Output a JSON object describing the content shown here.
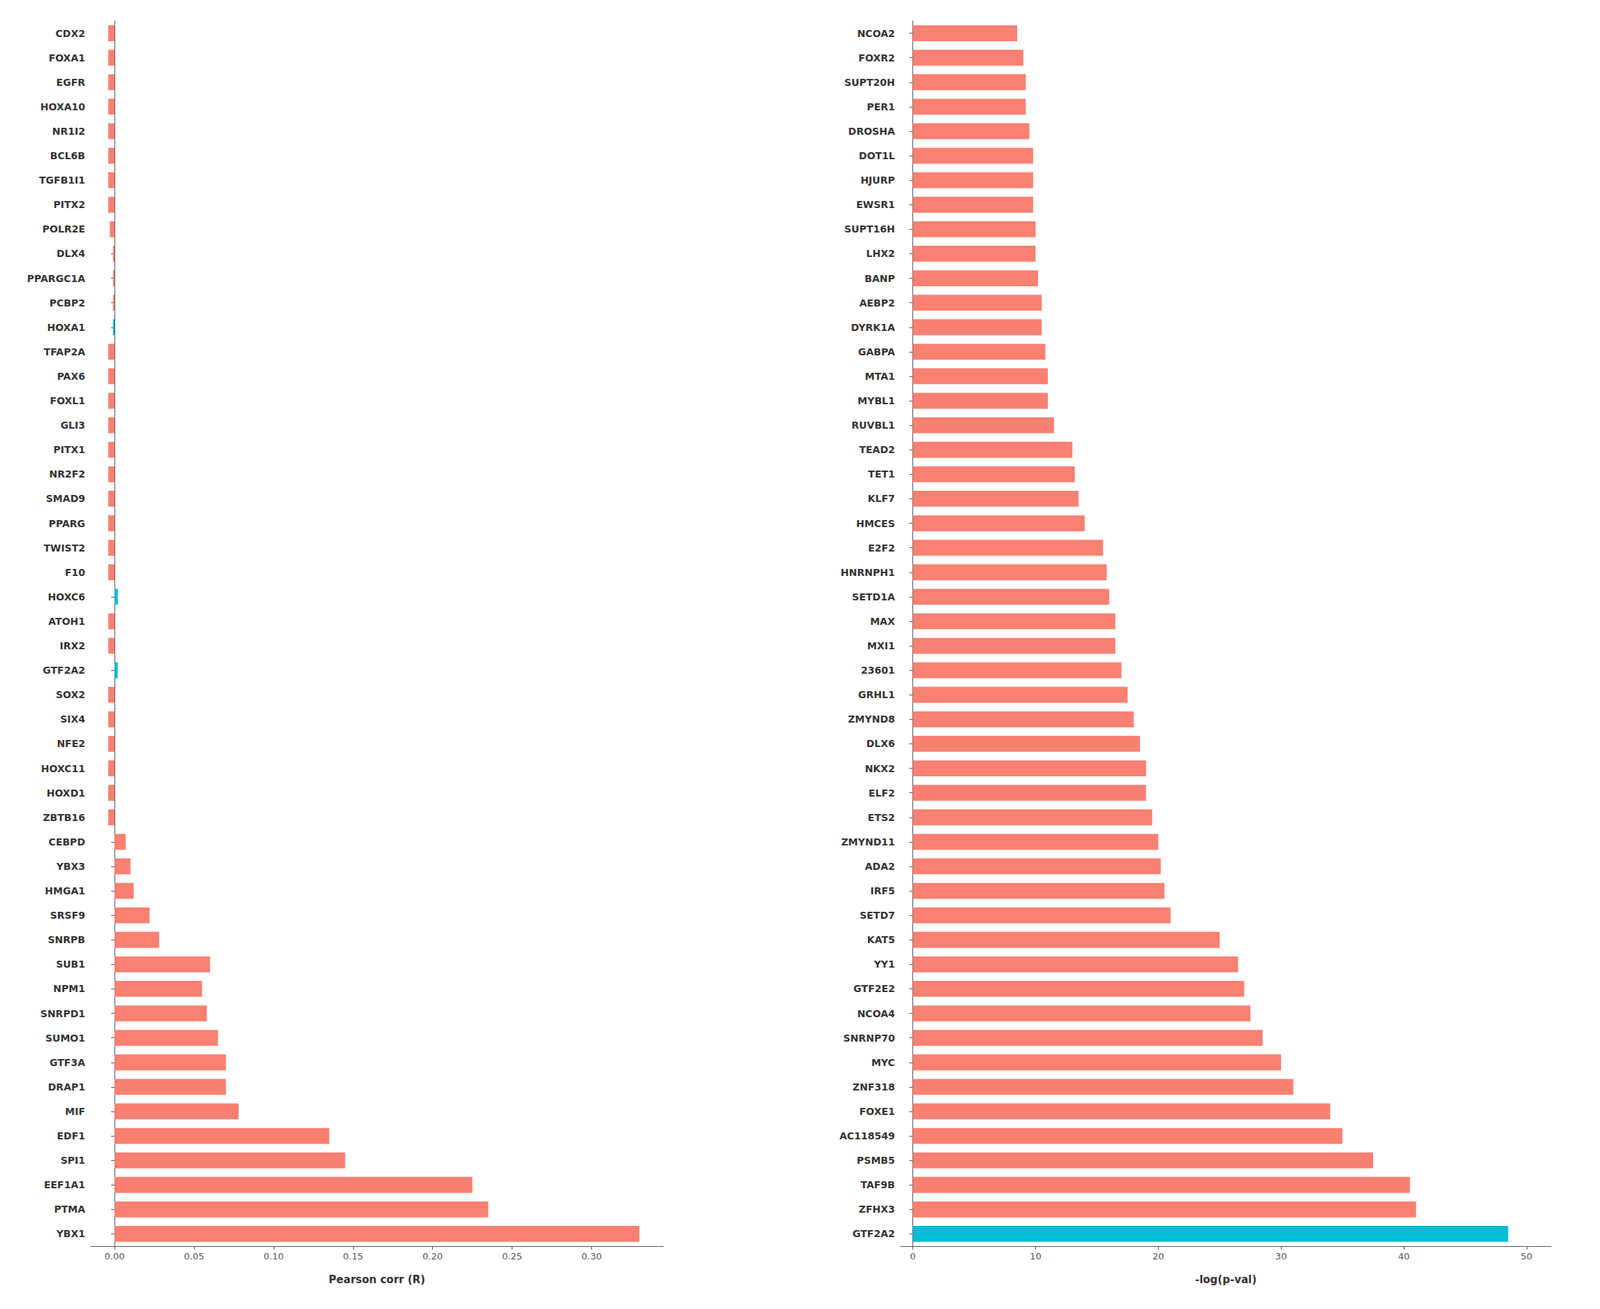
{
  "chart_data": [
    {
      "type": "bar",
      "orientation": "horizontal",
      "xlabel": "Pearson corr (R)",
      "categories": [
        "CDX2",
        "FOXA1",
        "EGFR",
        "HOXA10",
        "NR1I2",
        "BCL6B",
        "TGFB1I1",
        "PITX2",
        "POLR2E",
        "DLX4",
        "PPARGC1A",
        "PCBP2",
        "HOXA1",
        "TFAP2A",
        "PAX6",
        "FOXL1",
        "GLI3",
        "PITX1",
        "NR2F2",
        "SMAD9",
        "PPARG",
        "TWIST2",
        "F10",
        "HOXC6",
        "ATOH1",
        "IRX2",
        "GTF2A2",
        "SOX2",
        "SIX4",
        "NFE2",
        "HOXC11",
        "HOXD1",
        "ZBTB16",
        "CEBPD",
        "YBX3",
        "HMGA1",
        "SRSF9",
        "SNRPB",
        "SUB1",
        "NPM1",
        "SNRPD1",
        "SUMO1",
        "GTF3A",
        "DRAP1",
        "MIF",
        "EDF1",
        "SPI1",
        "EEF1A1",
        "PTMA",
        "YBX1"
      ],
      "values": [
        -0.004,
        -0.004,
        -0.004,
        -0.004,
        -0.004,
        -0.004,
        -0.004,
        -0.004,
        -0.003,
        -0.001,
        -0.001,
        -0.001,
        -0.001,
        -0.004,
        -0.004,
        -0.004,
        -0.004,
        -0.004,
        -0.004,
        -0.004,
        -0.004,
        -0.004,
        -0.004,
        0.002,
        -0.004,
        -0.004,
        0.002,
        -0.004,
        -0.004,
        -0.004,
        -0.004,
        -0.004,
        -0.004,
        0.007,
        0.01,
        0.012,
        0.022,
        0.028,
        0.06,
        0.055,
        0.058,
        0.065,
        0.07,
        0.07,
        0.078,
        0.135,
        0.145,
        0.225,
        0.235,
        0.33
      ],
      "colors": [
        "#FA8072",
        "#FA8072",
        "#FA8072",
        "#FA8072",
        "#FA8072",
        "#FA8072",
        "#FA8072",
        "#FA8072",
        "#FA8072",
        "#FA8072",
        "#FA8072",
        "#FA8072",
        "#00BCD4",
        "#FA8072",
        "#FA8072",
        "#FA8072",
        "#FA8072",
        "#FA8072",
        "#FA8072",
        "#FA8072",
        "#FA8072",
        "#FA8072",
        "#FA8072",
        "#00BCD4",
        "#FA8072",
        "#FA8072",
        "#00BCD4",
        "#FA8072",
        "#FA8072",
        "#FA8072",
        "#FA8072",
        "#FA8072",
        "#FA8072",
        "#FA8072",
        "#FA8072",
        "#FA8072",
        "#FA8072",
        "#FA8072",
        "#FA8072",
        "#FA8072",
        "#FA8072",
        "#FA8072",
        "#FA8072",
        "#FA8072",
        "#FA8072",
        "#FA8072",
        "#FA8072",
        "#FA8072",
        "#FA8072",
        "#FA8072"
      ],
      "xlim": [
        -0.015,
        0.345
      ],
      "xticks": [
        {
          "value": 0,
          "label": "0.00"
        },
        0.05,
        {
          "value": 0.1,
          "label": "0.10"
        },
        0.15,
        {
          "value": 0.2,
          "label": "0.20"
        },
        0.25,
        {
          "value": 0.3,
          "label": "0.30"
        }
      ],
      "grid": false
    },
    {
      "type": "bar",
      "orientation": "horizontal",
      "xlabel": "-log(p-val)",
      "categories": [
        "NCOA2",
        "FOXR2",
        "SUPT20H",
        "PER1",
        "DROSHA",
        "DOT1L",
        "HJURP",
        "EWSR1",
        "SUPT16H",
        "LHX2",
        "BANP",
        "AEBP2",
        "DYRK1A",
        "GABPA",
        "MTA1",
        "MYBL1",
        "RUVBL1",
        "TEAD2",
        "TET1",
        "KLF7",
        "HMCES",
        "E2F2",
        "HNRNPH1",
        "SETD1A",
        "MAX",
        "MXI1",
        "23601",
        "GRHL1",
        "ZMYND8",
        "DLX6",
        "NKX2",
        "ELF2",
        "ETS2",
        "ZMYND11",
        "ADA2",
        "IRF5",
        "SETD7",
        "KAT5",
        "YY1",
        "GTF2E2",
        "NCOA4",
        "SNRNP70",
        "MYC",
        "ZNF318",
        "FOXE1",
        "AC118549",
        "PSMB5",
        "TAF9B",
        "ZFHX3",
        "GTF2A2"
      ],
      "values": [
        8.5,
        9.0,
        9.2,
        9.2,
        9.5,
        9.8,
        9.8,
        9.8,
        10.0,
        10.0,
        10.2,
        10.5,
        10.5,
        10.8,
        11.0,
        11.0,
        11.5,
        13.0,
        13.2,
        13.5,
        14.0,
        15.5,
        15.8,
        16.0,
        16.5,
        16.5,
        17.0,
        17.5,
        18.0,
        18.5,
        19.0,
        19.0,
        19.5,
        20.0,
        20.2,
        20.5,
        21.0,
        25.0,
        26.5,
        27.0,
        27.5,
        28.5,
        30.0,
        31.0,
        34.0,
        35.0,
        37.5,
        40.5,
        41.0,
        48.5
      ],
      "colors": [
        "#FA8072",
        "#FA8072",
        "#FA8072",
        "#FA8072",
        "#FA8072",
        "#FA8072",
        "#FA8072",
        "#FA8072",
        "#FA8072",
        "#FA8072",
        "#FA8072",
        "#FA8072",
        "#FA8072",
        "#FA8072",
        "#FA8072",
        "#FA8072",
        "#FA8072",
        "#FA8072",
        "#FA8072",
        "#FA8072",
        "#FA8072",
        "#FA8072",
        "#FA8072",
        "#FA8072",
        "#FA8072",
        "#FA8072",
        "#FA8072",
        "#FA8072",
        "#FA8072",
        "#FA8072",
        "#FA8072",
        "#FA8072",
        "#FA8072",
        "#FA8072",
        "#FA8072",
        "#FA8072",
        "#FA8072",
        "#FA8072",
        "#FA8072",
        "#FA8072",
        "#FA8072",
        "#FA8072",
        "#FA8072",
        "#FA8072",
        "#FA8072",
        "#FA8072",
        "#FA8072",
        "#FA8072",
        "#FA8072",
        "#00BCD4"
      ],
      "xlim": [
        -1,
        52
      ],
      "xticks": [
        0,
        10,
        20,
        30,
        40,
        50
      ],
      "grid": false
    }
  ]
}
